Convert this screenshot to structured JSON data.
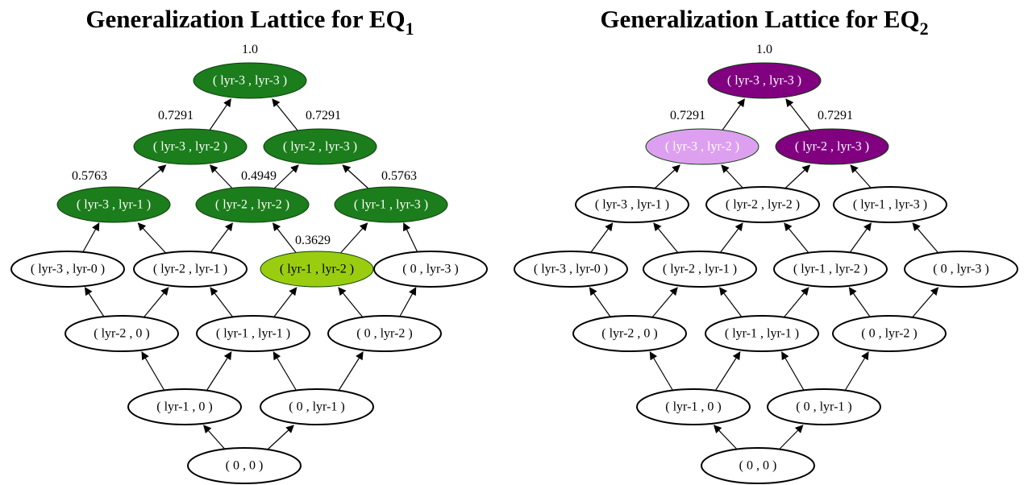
{
  "lattices": [
    {
      "title": "Generalization Lattice for EQ",
      "subscript": "1",
      "nodes": [
        {
          "key": "3-3",
          "label": "( lyr-3 , lyr-3 )",
          "score": "1.0",
          "fill": "#1b7d1b",
          "text": "#ffffff"
        },
        {
          "key": "3-2",
          "label": "( lyr-3 , lyr-2 )",
          "score": "0.7291",
          "fill": "#1b7d1b",
          "text": "#ffffff"
        },
        {
          "key": "2-3",
          "label": "( lyr-2 , lyr-3 )",
          "score": "0.7291",
          "fill": "#1b7d1b",
          "text": "#ffffff"
        },
        {
          "key": "3-1",
          "label": "( lyr-3 , lyr-1 )",
          "score": "0.5763",
          "fill": "#1b7d1b",
          "text": "#ffffff"
        },
        {
          "key": "2-2",
          "label": "( lyr-2 , lyr-2 )",
          "score": "0.4949",
          "fill": "#1b7d1b",
          "text": "#ffffff"
        },
        {
          "key": "1-3",
          "label": "( lyr-1 , lyr-3 )",
          "score": "0.5763",
          "fill": "#1b7d1b",
          "text": "#ffffff"
        },
        {
          "key": "3-0",
          "label": "( lyr-3 , lyr-0 )",
          "score": null,
          "fill": "#ffffff",
          "text": "#000000"
        },
        {
          "key": "2-1",
          "label": "( lyr-2 , lyr-1 )",
          "score": null,
          "fill": "#ffffff",
          "text": "#000000"
        },
        {
          "key": "1-2",
          "label": "( lyr-1 , lyr-2 )",
          "score": "0.3629",
          "fill": "#9acd10",
          "text": "#000000"
        },
        {
          "key": "0-3",
          "label": "( 0 , lyr-3 )",
          "score": null,
          "fill": "#ffffff",
          "text": "#000000"
        },
        {
          "key": "2-0",
          "label": "( lyr-2 , 0 )",
          "score": null,
          "fill": "#ffffff",
          "text": "#000000"
        },
        {
          "key": "1-1",
          "label": "( lyr-1 , lyr-1 )",
          "score": null,
          "fill": "#ffffff",
          "text": "#000000"
        },
        {
          "key": "0-2",
          "label": "( 0 , lyr-2 )",
          "score": null,
          "fill": "#ffffff",
          "text": "#000000"
        },
        {
          "key": "1-0",
          "label": "( lyr-1 , 0 )",
          "score": null,
          "fill": "#ffffff",
          "text": "#000000"
        },
        {
          "key": "0-1",
          "label": "( 0 , lyr-1 )",
          "score": null,
          "fill": "#ffffff",
          "text": "#000000"
        },
        {
          "key": "0-0",
          "label": "( 0 , 0 )",
          "score": null,
          "fill": "#ffffff",
          "text": "#000000"
        }
      ]
    },
    {
      "title": "Generalization Lattice for EQ",
      "subscript": "2",
      "nodes": [
        {
          "key": "3-3",
          "label": "( lyr-3 , lyr-3 )",
          "score": "1.0",
          "fill": "#800080",
          "text": "#ffffff"
        },
        {
          "key": "3-2",
          "label": "( lyr-3 , lyr-2 )",
          "score": "0.7291",
          "fill": "#dda0f0",
          "text": "#ffffff"
        },
        {
          "key": "2-3",
          "label": "( lyr-2 , lyr-3 )",
          "score": "0.7291",
          "fill": "#800080",
          "text": "#ffffff"
        },
        {
          "key": "3-1",
          "label": "( lyr-3 , lyr-1 )",
          "score": null,
          "fill": "#ffffff",
          "text": "#000000"
        },
        {
          "key": "2-2",
          "label": "( lyr-2 , lyr-2 )",
          "score": null,
          "fill": "#ffffff",
          "text": "#000000"
        },
        {
          "key": "1-3",
          "label": "( lyr-1 , lyr-3 )",
          "score": null,
          "fill": "#ffffff",
          "text": "#000000"
        },
        {
          "key": "3-0",
          "label": "( lyr-3 , lyr-0 )",
          "score": null,
          "fill": "#ffffff",
          "text": "#000000"
        },
        {
          "key": "2-1",
          "label": "( lyr-2 , lyr-1 )",
          "score": null,
          "fill": "#ffffff",
          "text": "#000000"
        },
        {
          "key": "1-2",
          "label": "( lyr-1 , lyr-2 )",
          "score": null,
          "fill": "#ffffff",
          "text": "#000000"
        },
        {
          "key": "0-3",
          "label": "( 0 , lyr-3 )",
          "score": null,
          "fill": "#ffffff",
          "text": "#000000"
        },
        {
          "key": "2-0",
          "label": "( lyr-2 , 0 )",
          "score": null,
          "fill": "#ffffff",
          "text": "#000000"
        },
        {
          "key": "1-1",
          "label": "( lyr-1 , lyr-1 )",
          "score": null,
          "fill": "#ffffff",
          "text": "#000000"
        },
        {
          "key": "0-2",
          "label": "( 0 , lyr-2 )",
          "score": null,
          "fill": "#ffffff",
          "text": "#000000"
        },
        {
          "key": "1-0",
          "label": "( lyr-1 , 0 )",
          "score": null,
          "fill": "#ffffff",
          "text": "#000000"
        },
        {
          "key": "0-1",
          "label": "( 0 , lyr-1 )",
          "score": null,
          "fill": "#ffffff",
          "text": "#000000"
        },
        {
          "key": "0-0",
          "label": "( 0 , 0 )",
          "score": null,
          "fill": "#ffffff",
          "text": "#000000"
        }
      ]
    }
  ]
}
